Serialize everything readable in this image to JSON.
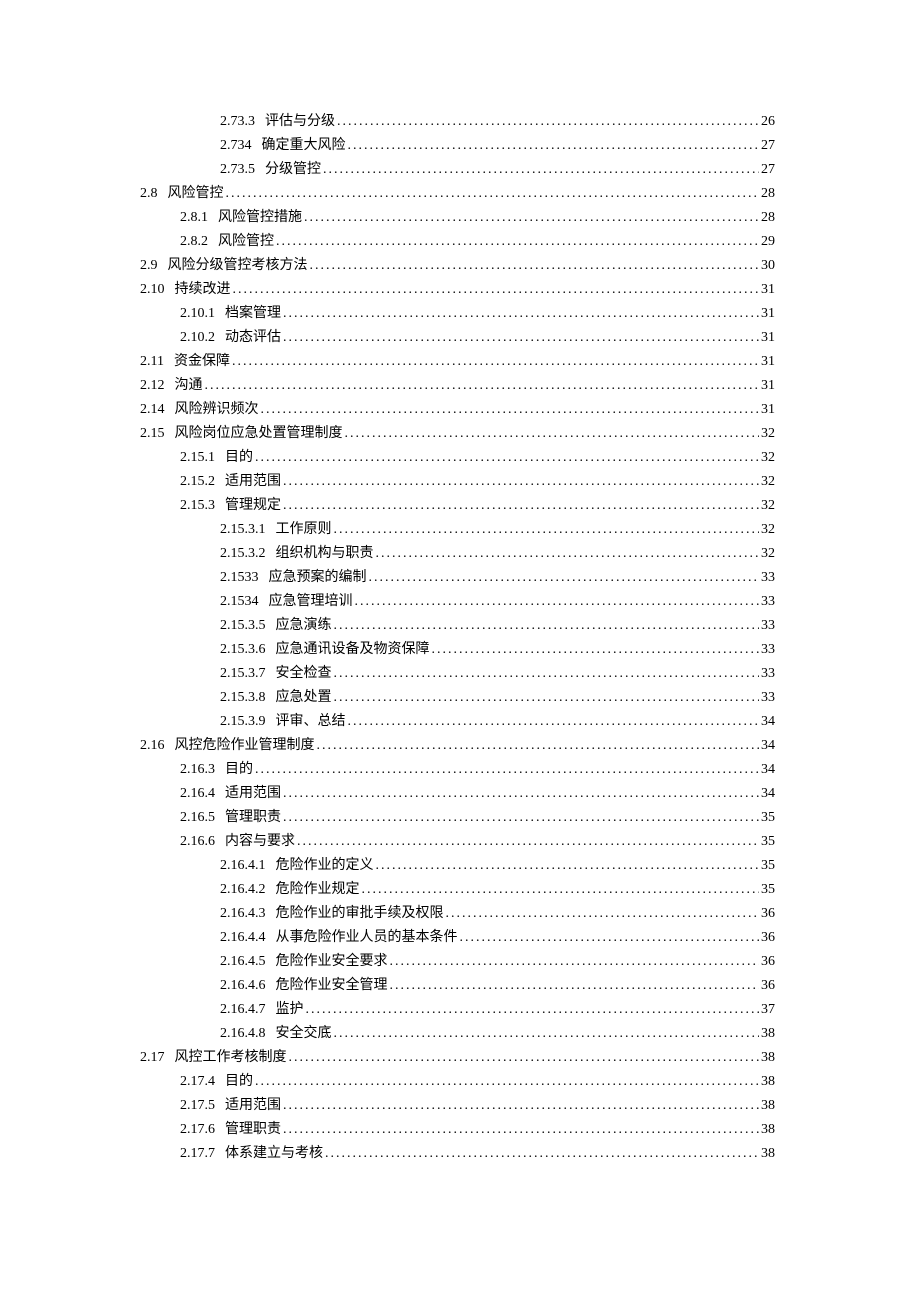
{
  "toc": {
    "font_family": "SimSun",
    "font_size": 14,
    "text_color": "#000000",
    "background_color": "#ffffff",
    "line_height": 24,
    "dot_char": ".",
    "entries": [
      {
        "indent": 3,
        "num": "2.73.3",
        "title": "评估与分级",
        "page": "26"
      },
      {
        "indent": 3,
        "num": "2.734",
        "title": "确定重大风险",
        "page": "27"
      },
      {
        "indent": 3,
        "num": "2.73.5",
        "title": "分级管控",
        "page": "27"
      },
      {
        "indent": 0,
        "num": "2.8",
        "title": "风险管控",
        "page": "28"
      },
      {
        "indent": 1,
        "num": "2.8.1",
        "title": "风险管控措施",
        "page": "28"
      },
      {
        "indent": 1,
        "num": "2.8.2",
        "title": "风险管控",
        "page": "29"
      },
      {
        "indent": 0,
        "num": "2.9",
        "title": "风险分级管控考核方法",
        "page": "30"
      },
      {
        "indent": 0,
        "num": "2.10",
        "title": "持续改进",
        "page": "31"
      },
      {
        "indent": 1,
        "num": "2.10.1",
        "title": "档案管理",
        "page": "31"
      },
      {
        "indent": 1,
        "num": "2.10.2",
        "title": "动态评估",
        "page": "31"
      },
      {
        "indent": 0,
        "num": "2.11",
        "title": "资金保障",
        "page": "31"
      },
      {
        "indent": 0,
        "num": "2.12",
        "title": "沟通",
        "page": "31"
      },
      {
        "indent": 0,
        "num": "2.14",
        "title": "风险辨识频次",
        "page": "31"
      },
      {
        "indent": 0,
        "num": "2.15",
        "title": "风险岗位应急处置管理制度",
        "page": "32"
      },
      {
        "indent": 1,
        "num": "2.15.1",
        "title": "目的",
        "page": "32"
      },
      {
        "indent": 1,
        "num": "2.15.2",
        "title": "适用范围",
        "page": "32"
      },
      {
        "indent": 1,
        "num": "2.15.3",
        "title": "管理规定",
        "page": "32"
      },
      {
        "indent": 2,
        "num": "2.15.3.1",
        "title": "工作原则",
        "page": "32"
      },
      {
        "indent": 2,
        "num": "2.15.3.2",
        "title": "组织机构与职责",
        "page": "32"
      },
      {
        "indent": 2,
        "num": "2.1533",
        "title": "应急预案的编制",
        "page": "33"
      },
      {
        "indent": 2,
        "num": "2.1534",
        "title": "应急管理培训",
        "page": "33"
      },
      {
        "indent": 2,
        "num": "2.15.3.5",
        "title": "应急演练",
        "page": "33"
      },
      {
        "indent": 2,
        "num": "2.15.3.6",
        "title": "应急通讯设备及物资保障",
        "page": "33"
      },
      {
        "indent": 2,
        "num": "2.15.3.7",
        "title": "安全检查",
        "page": "33"
      },
      {
        "indent": 2,
        "num": "2.15.3.8",
        "title": "应急处置",
        "page": "33"
      },
      {
        "indent": 2,
        "num": "2.15.3.9",
        "title": "评审、总结",
        "page": "34"
      },
      {
        "indent": 0,
        "num": "2.16",
        "title": "风控危险作业管理制度",
        "page": "34"
      },
      {
        "indent": 1,
        "num": "2.16.3",
        "title": "目的",
        "page": "34"
      },
      {
        "indent": 1,
        "num": "2.16.4",
        "title": "适用范围",
        "page": "34"
      },
      {
        "indent": 1,
        "num": "2.16.5",
        "title": "管理职责",
        "page": "35"
      },
      {
        "indent": 1,
        "num": "2.16.6",
        "title": "内容与要求",
        "page": "35"
      },
      {
        "indent": 2,
        "num": "2.16.4.1",
        "title": "危险作业的定义",
        "page": "35"
      },
      {
        "indent": 2,
        "num": "2.16.4.2",
        "title": "危险作业规定",
        "page": "35"
      },
      {
        "indent": 2,
        "num": "2.16.4.3",
        "title": "危险作业的审批手续及权限",
        "page": "36"
      },
      {
        "indent": 2,
        "num": "2.16.4.4",
        "title": "从事危险作业人员的基本条件",
        "page": "36"
      },
      {
        "indent": 2,
        "num": "2.16.4.5",
        "title": "危险作业安全要求",
        "page": "36"
      },
      {
        "indent": 2,
        "num": "2.16.4.6",
        "title": "危险作业安全管理",
        "page": "36"
      },
      {
        "indent": 2,
        "num": "2.16.4.7",
        "title": "监护",
        "page": "37"
      },
      {
        "indent": 2,
        "num": "2.16.4.8",
        "title": "安全交底",
        "page": "38"
      },
      {
        "indent": 0,
        "num": "2.17",
        "title": "风控工作考核制度",
        "page": "38"
      },
      {
        "indent": 1,
        "num": "2.17.4",
        "title": "目的",
        "page": "38"
      },
      {
        "indent": 1,
        "num": "2.17.5",
        "title": "适用范围",
        "page": "38"
      },
      {
        "indent": 1,
        "num": "2.17.6",
        "title": "管理职责",
        "page": "38"
      },
      {
        "indent": 1,
        "num": "2.17.7",
        "title": "体系建立与考核",
        "page": "38"
      }
    ]
  }
}
